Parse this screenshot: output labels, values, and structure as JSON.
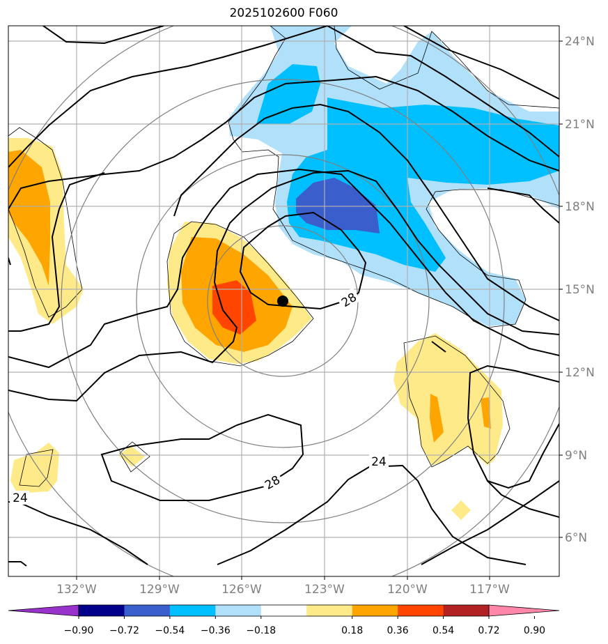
{
  "title": "2025102600 F060",
  "map": {
    "lat_labels": [
      {
        "lat": 24,
        "text": "24°N"
      },
      {
        "lat": 21,
        "text": "21°N"
      },
      {
        "lat": 18,
        "text": "18°N"
      },
      {
        "lat": 15,
        "text": "15°N"
      },
      {
        "lat": 12,
        "text": "12°N"
      },
      {
        "lat": 9,
        "text": "9°N"
      },
      {
        "lat": 6,
        "text": "6°N"
      }
    ],
    "lon_labels": [
      {
        "lon": -132,
        "text": "132°W"
      },
      {
        "lon": -129,
        "text": "129°W"
      },
      {
        "lon": -126,
        "text": "126°W"
      },
      {
        "lon": -123,
        "text": "123°W"
      },
      {
        "lon": -120,
        "text": "120°W"
      },
      {
        "lon": -117,
        "text": "117°W"
      }
    ],
    "contour_labels": [
      "28",
      "28",
      "24",
      "24"
    ],
    "storm_center": {
      "lon": -124.5,
      "lat": 14.6
    },
    "colors": {
      "gridline": "#b0b0b0",
      "label": "#7f7f7f",
      "contour": "#000000",
      "ring": "#808080"
    }
  },
  "colorbar": {
    "ticks": [
      "−0.90",
      "−0.72",
      "−0.54",
      "−0.36",
      "−0.18",
      "0.18",
      "0.36",
      "0.54",
      "0.72",
      "0.90"
    ],
    "colors": [
      "#9932cc",
      "#00008b",
      "#3a5fcd",
      "#00bfff",
      "#b0e0fa",
      "#ffffff",
      "#ffea8a",
      "#ffa500",
      "#ff4500",
      "#b22222",
      "#ff88aa"
    ]
  }
}
